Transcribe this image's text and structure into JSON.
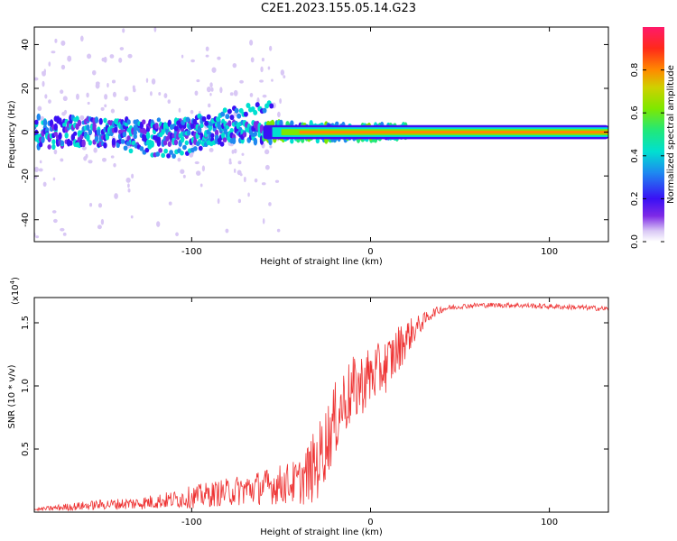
{
  "title": "C2E1.2023.155.05.14.G23",
  "colors": {
    "snr_line": "#ee3333",
    "spectro_background": "#ffffff",
    "colorbar": [
      "#ffffff",
      "#d9c8f5",
      "#7e2ae6",
      "#3a10f5",
      "#1e88f0",
      "#00e0d0",
      "#22e878",
      "#7ee800",
      "#d0d000",
      "#ff8a00",
      "#ff2a1a",
      "#ff1a6a"
    ]
  },
  "chart_data": [
    {
      "type": "heatmap",
      "title": "C2E1.2023.155.05.14.G23",
      "xlabel": "Height of straight line (km)",
      "ylabel": "Frequency (Hz)",
      "xlim": [
        -188,
        133
      ],
      "ylim": [
        -50,
        48
      ],
      "xticks": [
        -100,
        0,
        100
      ],
      "yticks": [
        40,
        20,
        0,
        -20,
        -40
      ],
      "grid": false,
      "colorbar": {
        "label": "Normalized spectral amplitude",
        "range": [
          0.0,
          1.0
        ],
        "ticks": [
          "0.0",
          "0.2",
          "0.4",
          "0.6",
          "0.8"
        ]
      },
      "description_values": {
        "dominant_line_frequency_hz": 0,
        "dominant_line_start_km": -60,
        "dominant_line_amplitude": 0.85,
        "upper_branch_peak_hz": 13,
        "upper_branch_peak_km": -55,
        "lower_branch_min_hz": -10,
        "lower_branch_min_km": -115
      }
    },
    {
      "type": "line",
      "xlabel": "Height of straight line (km)",
      "ylabel": "SNR (10 * v/v)",
      "scale_label": "(x10",
      "scale_exp": "4",
      "scale_close": ")",
      "xlim": [
        -188,
        133
      ],
      "ylim": [
        0,
        1.7
      ],
      "xticks": [
        -100,
        0,
        100
      ],
      "yticks": [
        0.5,
        1.0,
        1.5
      ],
      "ytick_labels": [
        "0.5",
        "1.0",
        "1.5"
      ],
      "series": [
        {
          "x": [
            -188,
            -170,
            -150,
            -130,
            -110,
            -100,
            -90,
            -80,
            -70,
            -60,
            -50,
            -40,
            -35,
            -30,
            -25,
            -20,
            -15,
            -10,
            -5,
            0,
            5,
            10,
            15,
            20,
            25,
            30,
            35,
            40,
            50,
            60,
            80,
            100,
            120,
            133
          ],
          "values": [
            0.02,
            0.04,
            0.06,
            0.07,
            0.1,
            0.12,
            0.14,
            0.16,
            0.18,
            0.2,
            0.22,
            0.24,
            0.3,
            0.38,
            0.55,
            0.72,
            0.88,
            0.95,
            1.02,
            1.08,
            1.12,
            1.18,
            1.28,
            1.38,
            1.45,
            1.52,
            1.58,
            1.61,
            1.63,
            1.64,
            1.64,
            1.63,
            1.62,
            1.61
          ],
          "noise": [
            0.01,
            0.03,
            0.04,
            0.05,
            0.07,
            0.09,
            0.1,
            0.11,
            0.13,
            0.14,
            0.16,
            0.18,
            0.25,
            0.3,
            0.3,
            0.3,
            0.28,
            0.28,
            0.25,
            0.25,
            0.22,
            0.22,
            0.2,
            0.15,
            0.1,
            0.06,
            0.04,
            0.03,
            0.02,
            0.02,
            0.02,
            0.02,
            0.02,
            0.02
          ]
        }
      ]
    }
  ]
}
